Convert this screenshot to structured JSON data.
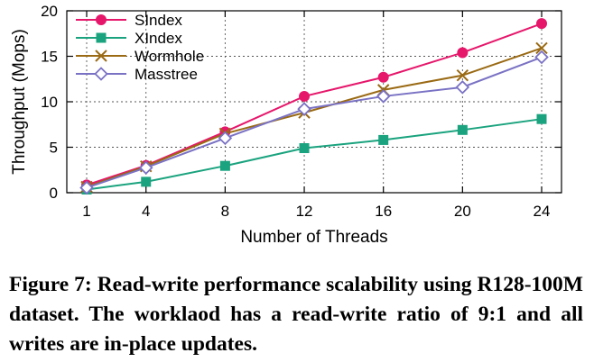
{
  "chart_data": {
    "type": "line",
    "xlabel": "Number of Threads",
    "ylabel": "Throughput (Mops)",
    "x": [
      1,
      4,
      8,
      12,
      16,
      20,
      24
    ],
    "xticks": [
      "1",
      "4",
      "8",
      "12",
      "16",
      "20",
      "24"
    ],
    "yticks": [
      "0",
      "5",
      "10",
      "15",
      "20"
    ],
    "ylim": [
      0,
      20
    ],
    "grid": true,
    "legend_position": "top-left",
    "series": [
      {
        "name": "SIndex",
        "color": "#e6176b",
        "marker": "filled-circle",
        "values": [
          0.85,
          3.0,
          6.7,
          10.6,
          12.7,
          15.4,
          18.6
        ]
      },
      {
        "name": "XIndex",
        "color": "#1aa37e",
        "marker": "filled-square",
        "values": [
          0.35,
          1.2,
          2.95,
          4.9,
          5.8,
          6.9,
          8.1
        ]
      },
      {
        "name": "Wormhole",
        "color": "#9a6a14",
        "marker": "x-cross",
        "values": [
          0.65,
          2.9,
          6.5,
          8.8,
          11.3,
          12.9,
          15.9
        ]
      },
      {
        "name": "Masstree",
        "color": "#7a72c4",
        "marker": "open-diamond",
        "values": [
          0.55,
          2.75,
          6.0,
          9.2,
          10.6,
          11.6,
          14.9
        ]
      }
    ]
  },
  "caption": "Figure 7: Read-write performance scalability using R128-100M dataset. The worklaod has a read-write ratio of 9:1 and all writes are in-place updates."
}
